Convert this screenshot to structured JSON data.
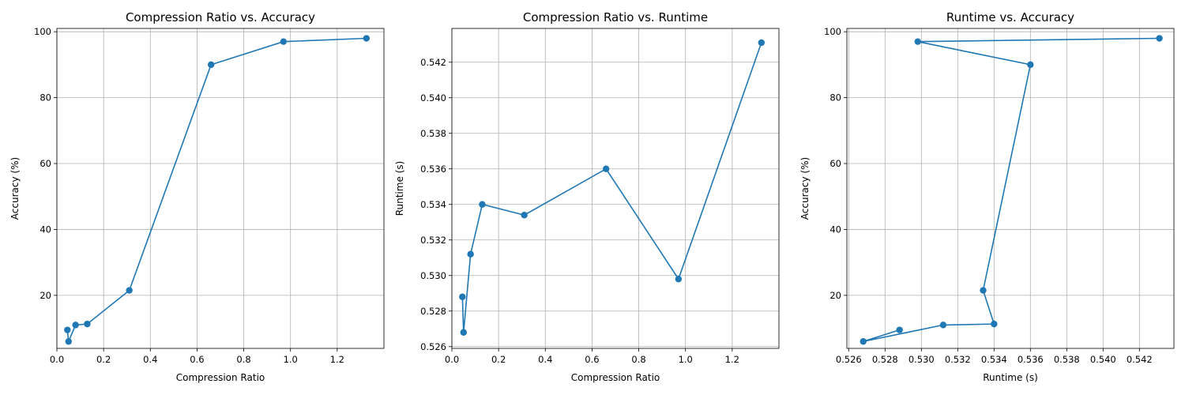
{
  "chart_data": [
    {
      "type": "line",
      "title": "Compression Ratio vs. Accuracy",
      "xlabel": "Compression Ratio",
      "ylabel": "Accuracy (%)",
      "xlim": [
        0.0,
        1.4
      ],
      "ylim": [
        3.9,
        101.0
      ],
      "xticks": [
        0.0,
        0.2,
        0.4,
        0.6,
        0.8,
        1.0,
        1.2
      ],
      "yticks": [
        20,
        40,
        60,
        80,
        100
      ],
      "grid": true,
      "markers": true,
      "color": "#1f77b4",
      "series": [
        {
          "x": [
            0.045,
            0.05,
            0.08,
            0.13,
            0.31,
            0.66,
            0.97,
            1.325
          ],
          "y": [
            9.5,
            6.0,
            11.0,
            11.3,
            21.5,
            90.0,
            97.0,
            98.0
          ]
        }
      ]
    },
    {
      "type": "line",
      "title": "Compression Ratio vs. Runtime",
      "xlabel": "Compression Ratio",
      "ylabel": "Runtime (s)",
      "xlim": [
        0.0,
        1.4
      ],
      "ylim": [
        0.5259,
        0.5439
      ],
      "xticks": [
        0.0,
        0.2,
        0.4,
        0.6,
        0.8,
        1.0,
        1.2
      ],
      "yticks": [
        0.526,
        0.528,
        0.53,
        0.532,
        0.534,
        0.536,
        0.538,
        0.54,
        0.542
      ],
      "grid": true,
      "markers": true,
      "color": "#1f77b4",
      "series": [
        {
          "x": [
            0.045,
            0.05,
            0.08,
            0.13,
            0.31,
            0.66,
            0.97,
            1.325
          ],
          "y": [
            0.5288,
            0.5268,
            0.5312,
            0.534,
            0.5334,
            0.536,
            0.5298,
            0.5431
          ]
        }
      ]
    },
    {
      "type": "line",
      "title": "Runtime vs. Accuracy",
      "xlabel": "Runtime (s)",
      "ylabel": "Accuracy (%)",
      "xlim": [
        0.5259,
        0.5439
      ],
      "ylim": [
        3.9,
        101.0
      ],
      "xticks": [
        0.526,
        0.528,
        0.53,
        0.532,
        0.534,
        0.536,
        0.538,
        0.54,
        0.542
      ],
      "yticks": [
        20,
        40,
        60,
        80,
        100
      ],
      "grid": true,
      "markers": true,
      "color": "#1f77b4",
      "series": [
        {
          "x": [
            0.5288,
            0.5268,
            0.5312,
            0.534,
            0.5334,
            0.536,
            0.5298,
            0.5431
          ],
          "y": [
            9.5,
            6.0,
            11.0,
            11.3,
            21.5,
            90.0,
            97.0,
            98.0
          ]
        }
      ]
    }
  ]
}
